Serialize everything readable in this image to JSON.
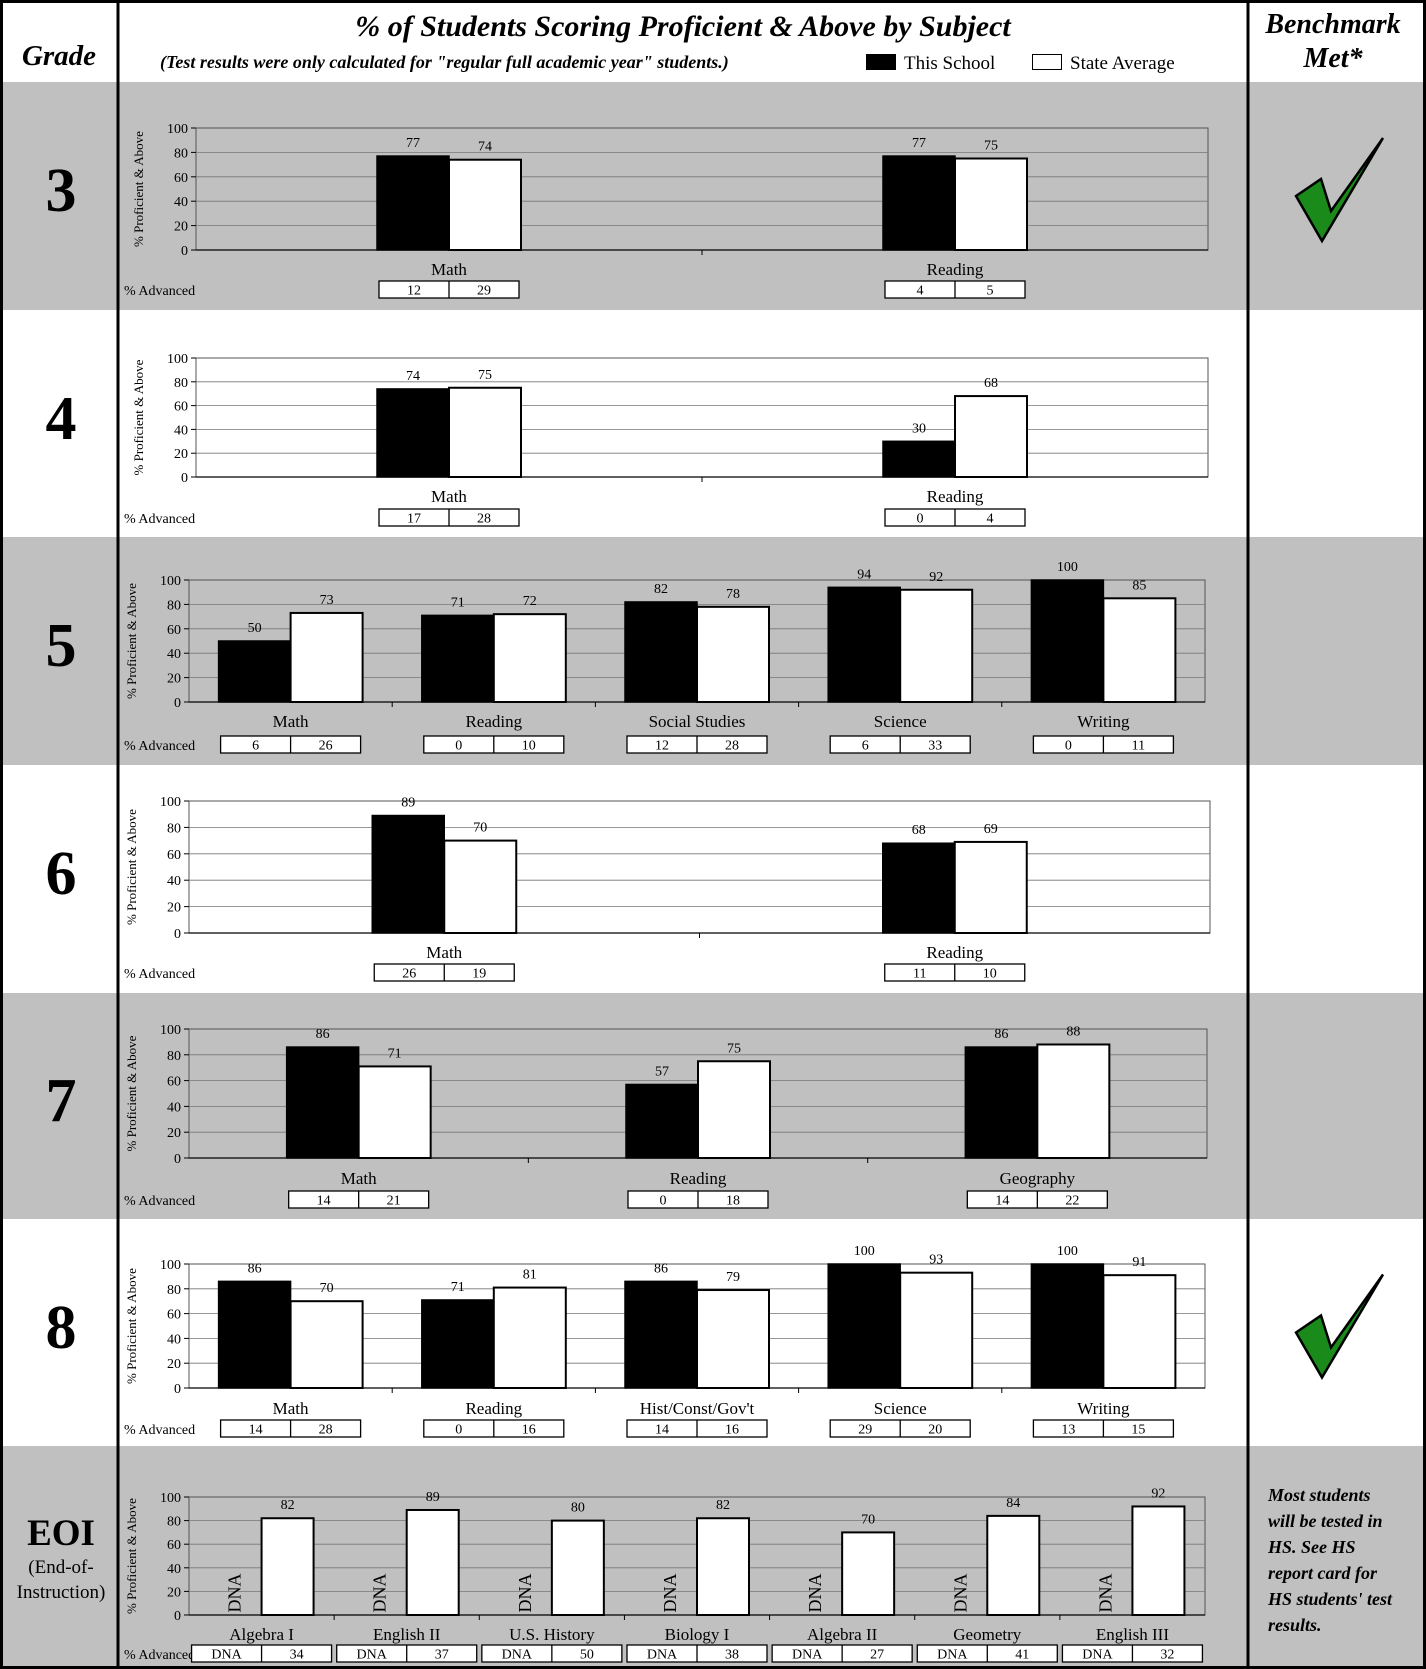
{
  "header": {
    "grade_label": "Grade",
    "title": "% of Students Scoring Proficient & Above by Subject",
    "subtitle": "(Test results were only calculated for \"regular full academic year\" students.)",
    "benchmark_label_line1": "Benchmark",
    "benchmark_label_line2": "Met*"
  },
  "legend": {
    "this_school": "This School",
    "state_average": "State Average"
  },
  "labels": {
    "ylabel": "% Proficient & Above",
    "advanced": "% Advanced",
    "dna": "DNA"
  },
  "colors": {
    "row_shade": "#c0c0c0",
    "school_bar": "#000000",
    "state_bar": "#ffffff",
    "checkmark": "#1a8a1a"
  },
  "eoi": {
    "title": "EOI",
    "subtitle_line1": "(End-of-",
    "subtitle_line2": "Instruction)",
    "note_lines": [
      "Most students",
      "will be tested in",
      "HS.   See HS",
      "report card for",
      "HS students' test",
      "results."
    ]
  },
  "chart_data": [
    {
      "grade": "3",
      "type": "bar",
      "ylim": [
        0,
        100
      ],
      "yticks": [
        0,
        20,
        40,
        60,
        80,
        100
      ],
      "benchmark_met": true,
      "categories": [
        "Math",
        "Reading"
      ],
      "series": [
        {
          "name": "This School",
          "values": [
            77,
            77
          ]
        },
        {
          "name": "State Average",
          "values": [
            74,
            75
          ]
        }
      ],
      "advanced": [
        [
          "12",
          "29"
        ],
        [
          "4",
          "5"
        ]
      ]
    },
    {
      "grade": "4",
      "type": "bar",
      "ylim": [
        0,
        100
      ],
      "yticks": [
        0,
        20,
        40,
        60,
        80,
        100
      ],
      "benchmark_met": false,
      "categories": [
        "Math",
        "Reading"
      ],
      "series": [
        {
          "name": "This School",
          "values": [
            74,
            30
          ]
        },
        {
          "name": "State Average",
          "values": [
            75,
            68
          ]
        }
      ],
      "advanced": [
        [
          "17",
          "28"
        ],
        [
          "0",
          "4"
        ]
      ]
    },
    {
      "grade": "5",
      "type": "bar",
      "ylim": [
        0,
        100
      ],
      "yticks": [
        0,
        20,
        40,
        60,
        80,
        100
      ],
      "benchmark_met": false,
      "categories": [
        "Math",
        "Reading",
        "Social Studies",
        "Science",
        "Writing"
      ],
      "series": [
        {
          "name": "This School",
          "values": [
            50,
            71,
            82,
            94,
            100
          ]
        },
        {
          "name": "State Average",
          "values": [
            73,
            72,
            78,
            92,
            85
          ]
        }
      ],
      "advanced": [
        [
          "6",
          "26"
        ],
        [
          "0",
          "10"
        ],
        [
          "12",
          "28"
        ],
        [
          "6",
          "33"
        ],
        [
          "0",
          "11"
        ]
      ]
    },
    {
      "grade": "6",
      "type": "bar",
      "ylim": [
        0,
        100
      ],
      "yticks": [
        0,
        20,
        40,
        60,
        80,
        100
      ],
      "benchmark_met": false,
      "categories": [
        "Math",
        "Reading"
      ],
      "series": [
        {
          "name": "This School",
          "values": [
            89,
            68
          ]
        },
        {
          "name": "State Average",
          "values": [
            70,
            69
          ]
        }
      ],
      "advanced": [
        [
          "26",
          "19"
        ],
        [
          "11",
          "10"
        ]
      ]
    },
    {
      "grade": "7",
      "type": "bar",
      "ylim": [
        0,
        100
      ],
      "yticks": [
        0,
        20,
        40,
        60,
        80,
        100
      ],
      "benchmark_met": false,
      "categories": [
        "Math",
        "Reading",
        "Geography"
      ],
      "series": [
        {
          "name": "This School",
          "values": [
            86,
            57,
            86
          ]
        },
        {
          "name": "State Average",
          "values": [
            71,
            75,
            88
          ]
        }
      ],
      "advanced": [
        [
          "14",
          "21"
        ],
        [
          "0",
          "18"
        ],
        [
          "14",
          "22"
        ]
      ]
    },
    {
      "grade": "8",
      "type": "bar",
      "ylim": [
        0,
        100
      ],
      "yticks": [
        0,
        20,
        40,
        60,
        80,
        100
      ],
      "benchmark_met": true,
      "categories": [
        "Math",
        "Reading",
        "Hist/Const/Gov't",
        "Science",
        "Writing"
      ],
      "series": [
        {
          "name": "This School",
          "values": [
            86,
            71,
            86,
            100,
            100
          ]
        },
        {
          "name": "State Average",
          "values": [
            70,
            81,
            79,
            93,
            91
          ]
        }
      ],
      "advanced": [
        [
          "14",
          "28"
        ],
        [
          "0",
          "16"
        ],
        [
          "14",
          "16"
        ],
        [
          "29",
          "20"
        ],
        [
          "13",
          "15"
        ]
      ]
    },
    {
      "grade": "EOI",
      "type": "bar",
      "ylim": [
        0,
        100
      ],
      "yticks": [
        0,
        20,
        40,
        60,
        80,
        100
      ],
      "benchmark_met": false,
      "categories": [
        "Algebra I",
        "English II",
        "U.S. History",
        "Biology I",
        "Algebra II",
        "Geometry",
        "English III"
      ],
      "series": [
        {
          "name": "This School",
          "values": [
            null,
            null,
            null,
            null,
            null,
            null,
            null
          ]
        },
        {
          "name": "State Average",
          "values": [
            82,
            89,
            80,
            82,
            70,
            84,
            92
          ]
        }
      ],
      "advanced": [
        [
          "DNA",
          "34"
        ],
        [
          "DNA",
          "37"
        ],
        [
          "DNA",
          "50"
        ],
        [
          "DNA",
          "38"
        ],
        [
          "DNA",
          "27"
        ],
        [
          "DNA",
          "41"
        ],
        [
          "DNA",
          "32"
        ]
      ]
    }
  ]
}
